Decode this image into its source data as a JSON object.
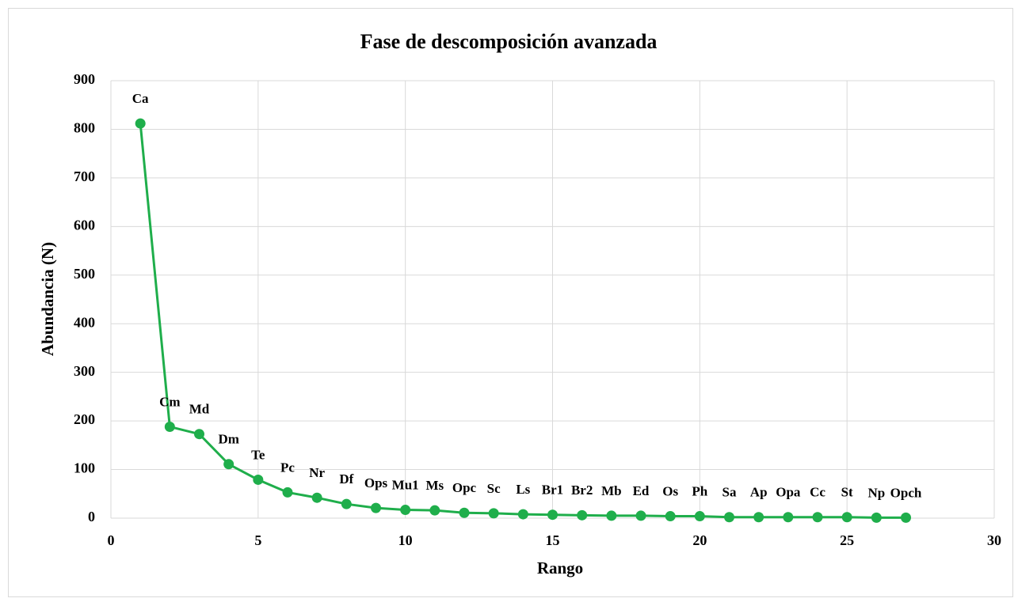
{
  "chart_data": {
    "type": "line",
    "title": "Fase de descomposición avanzada",
    "x_label": "Rango",
    "y_label": "Abundancia (N)",
    "series": [
      {
        "color": "#1fae4b",
        "x": [
          1,
          2,
          3,
          4,
          5,
          6,
          7,
          8,
          9,
          10,
          11,
          12,
          13,
          14,
          15,
          16,
          17,
          18,
          19,
          20,
          21,
          22,
          23,
          24,
          25,
          26,
          27
        ],
        "values": [
          812,
          188,
          173,
          111,
          79,
          53,
          42,
          29,
          21,
          17,
          16,
          11,
          10,
          8,
          7,
          6,
          5,
          5,
          4,
          4,
          2,
          2,
          2,
          2,
          2,
          1,
          1
        ],
        "labels": [
          "Ca",
          "Cm",
          "Md",
          "Dm",
          "Te",
          "Pc",
          "Nr",
          "Df",
          "Ops",
          "Mu1",
          "Ms",
          "Opc",
          "Sc",
          "Ls",
          "Br1",
          "Br2",
          "Mb",
          "Ed",
          "Os",
          "Ph",
          "Sa",
          "Ap",
          "Opa",
          "Cc",
          "St",
          "Np",
          "Opch"
        ]
      }
    ],
    "xlim": [
      0,
      30
    ],
    "xticks": [
      0,
      5,
      10,
      15,
      20,
      25,
      30
    ],
    "ylim": [
      0,
      900
    ],
    "yticks": [
      0,
      100,
      200,
      300,
      400,
      500,
      600,
      700,
      800,
      900
    ],
    "grid": true
  }
}
